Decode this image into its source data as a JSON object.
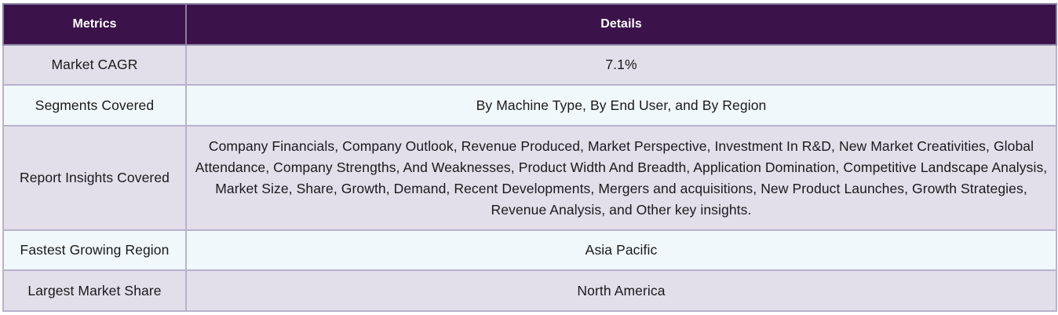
{
  "table": {
    "headers": {
      "metrics": "Metrics",
      "details": "Details"
    },
    "rows": [
      {
        "metric": "Market CAGR",
        "detail": "7.1%"
      },
      {
        "metric": "Segments Covered",
        "detail": "By Machine Type, By End User, and By Region"
      },
      {
        "metric": "Report Insights Covered",
        "detail": "Company Financials, Company Outlook, Revenue Produced, Market Perspective, Investment In R&D, New Market Creativities, Global Attendance, Company Strengths, And Weaknesses, Product Width And Breadth, Application Domination, Competitive Landscape Analysis, Market Size, Share, Growth, Demand, Recent Developments, Mergers and acquisitions, New Product Launches, Growth Strategies, Revenue Analysis, and Other key insights."
      },
      {
        "metric": "Fastest Growing Region",
        "detail": "Asia Pacific"
      },
      {
        "metric": "Largest Market Share",
        "detail": "North America"
      }
    ],
    "colors": {
      "header_bg": "#3b124a",
      "row_shaded": "#e2deea",
      "row_light": "#f1f8fb",
      "border": "#b8b2cc"
    }
  }
}
